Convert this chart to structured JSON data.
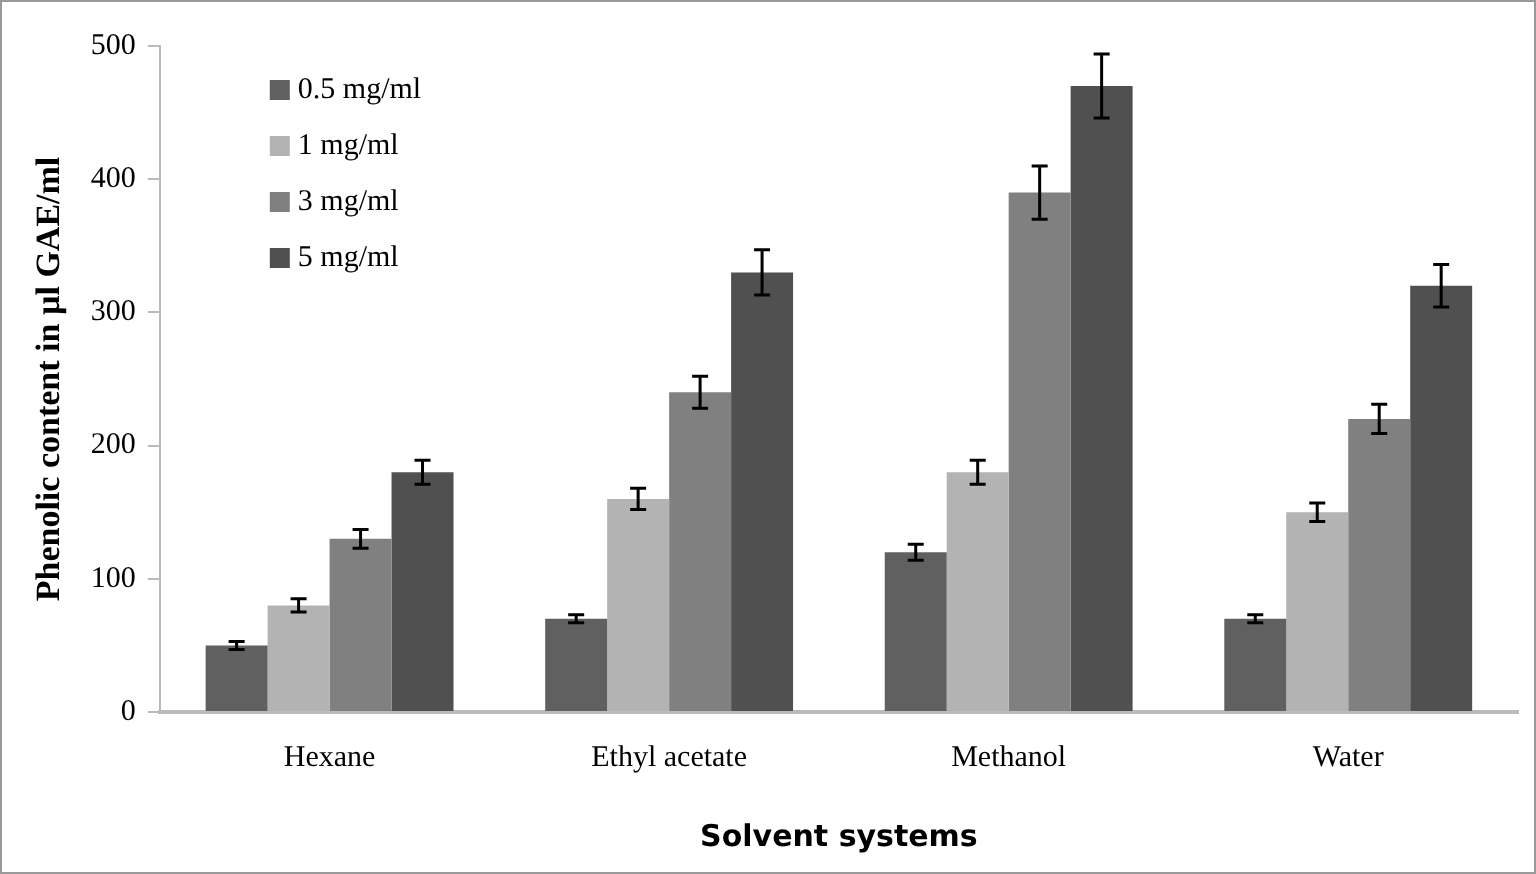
{
  "chart_data": {
    "type": "bar",
    "xlabel": "Solvent systems",
    "ylabel": "Phenolic content in µl GAE/ml",
    "categories": [
      "Hexane",
      "Ethyl acetate",
      "Methanol",
      "Water"
    ],
    "series": [
      {
        "name": "0.5 mg/ml",
        "color": "#606060",
        "values": [
          50,
          70,
          120,
          70
        ],
        "errors": [
          3,
          3,
          6,
          3
        ]
      },
      {
        "name": "1 mg/ml",
        "color": "#b3b3b3",
        "values": [
          80,
          160,
          180,
          150
        ],
        "errors": [
          5,
          8,
          9,
          7
        ]
      },
      {
        "name": "3 mg/ml",
        "color": "#808080",
        "values": [
          130,
          240,
          390,
          220
        ],
        "errors": [
          7,
          12,
          20,
          11
        ]
      },
      {
        "name": "5 mg/ml",
        "color": "#505050",
        "values": [
          180,
          330,
          470,
          320
        ],
        "errors": [
          9,
          17,
          24,
          16
        ]
      }
    ],
    "ylim": [
      0,
      500
    ],
    "yticks": [
      0,
      100,
      200,
      300,
      400,
      500
    ],
    "grid": false,
    "legend": "top left"
  }
}
